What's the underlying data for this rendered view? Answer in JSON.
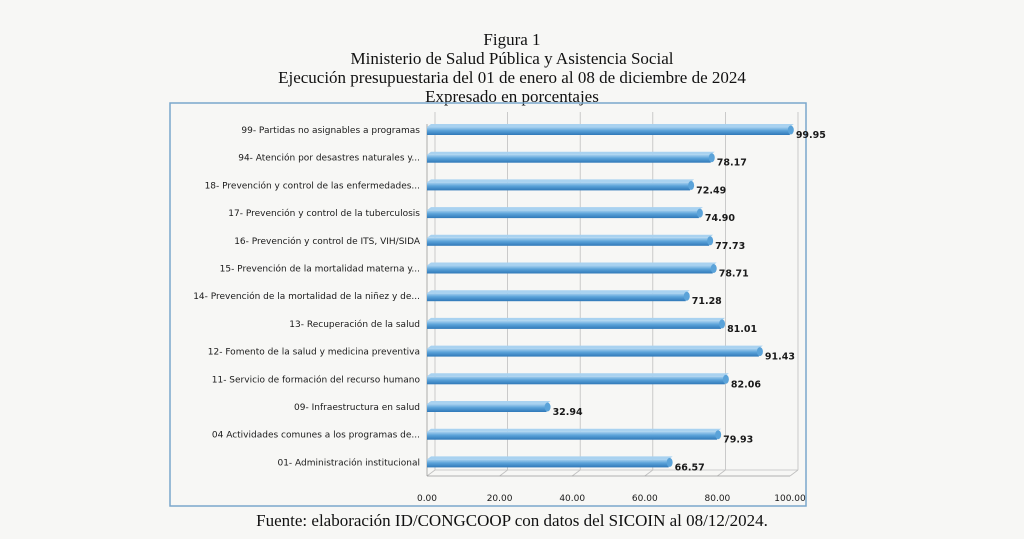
{
  "header": {
    "figure_number": "Figura 1",
    "institution": "Ministerio de Salud Pública y Asistencia Social",
    "period": "Ejecución presupuestaria del 01 de enero al 08 de diciembre de 2024",
    "unit_note": "Expresado en porcentajes"
  },
  "footer": {
    "source": "Fuente: elaboración ID/CONGCOOP con datos del SICOIN al 08/12/2024."
  },
  "colors": {
    "bar_top": "#a9d2f0",
    "bar_mid": "#5ba3d9",
    "bar_bottom": "#2f78b8",
    "frame": "#7aa7cc",
    "grid": "#bfbfbf"
  },
  "chart_data": {
    "type": "bar",
    "orientation": "horizontal",
    "categories": [
      "99- Partidas no asignables a  programas",
      "94- Atención por desastres naturales y...",
      "18- Prevención y control de las enfermedades...",
      "17- Prevención y control de la tuberculosis",
      "16- Prevención y control de ITS, VIH/SIDA",
      "15- Prevención de la mortalidad materna y...",
      "14- Prevención de la mortalidad de la niñez y de...",
      "13- Recuperación de la salud",
      "12- Fomento de la salud y medicina preventiva",
      "11- Servicio de formación del  recurso humano",
      "09- Infraestructura en salud",
      "04 Actividades comunes a los programas de...",
      "01- Administración institucional"
    ],
    "values": [
      99.95,
      78.17,
      72.49,
      74.9,
      77.73,
      78.71,
      71.28,
      81.01,
      91.43,
      82.06,
      32.94,
      79.93,
      66.57
    ],
    "value_labels": [
      "99.95",
      "78.17",
      "72.49",
      "74.90",
      "77.73",
      "78.71",
      "71.28",
      "81.01",
      "91.43",
      "82.06",
      "32.94",
      "79.93",
      "66.57"
    ],
    "x_ticks": [
      "0.00",
      "20.00",
      "40.00",
      "60.00",
      "80.00",
      "100.00"
    ],
    "xlim": [
      0,
      100
    ],
    "grid": true,
    "legend": "none"
  }
}
